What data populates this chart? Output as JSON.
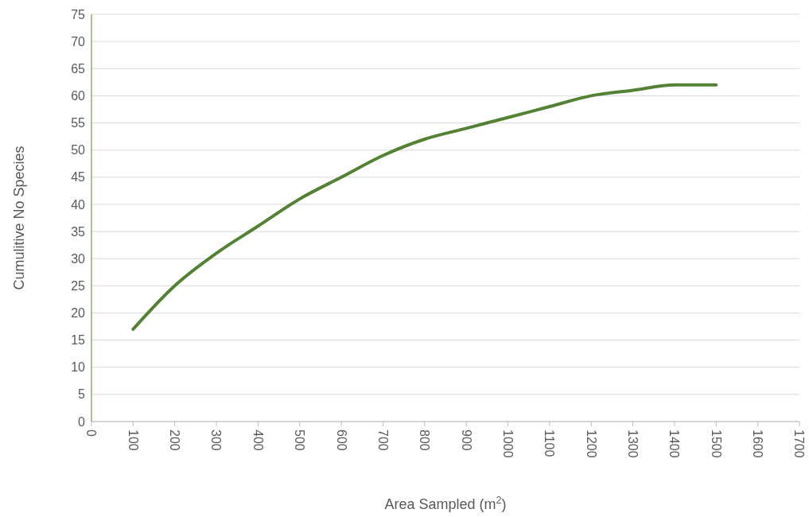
{
  "chart_data": {
    "type": "line",
    "xlabel": "Area Sampled (m$^{2}$)",
    "ylabel": "Cumulitive No Species",
    "x": [
      100,
      200,
      300,
      400,
      500,
      600,
      700,
      800,
      900,
      1000,
      1100,
      1200,
      1300,
      1400,
      1500
    ],
    "series": [
      {
        "color": "#548235",
        "values": [
          17,
          25,
          31,
          36,
          41,
          45,
          49,
          52,
          54,
          56,
          58,
          60,
          61,
          62,
          62
        ]
      }
    ],
    "xlim": [
      0,
      1700
    ],
    "xticks": [
      0,
      100,
      200,
      300,
      400,
      500,
      600,
      700,
      800,
      900,
      1000,
      1100,
      1200,
      1300,
      1400,
      1500,
      1600,
      1700
    ],
    "ylim": [
      0,
      75
    ],
    "yticks": [
      0,
      5,
      10,
      15,
      20,
      25,
      30,
      35,
      40,
      45,
      50,
      55,
      60,
      65,
      70,
      75
    ],
    "grid": "y",
    "marker": "none",
    "line_style": "solid"
  }
}
